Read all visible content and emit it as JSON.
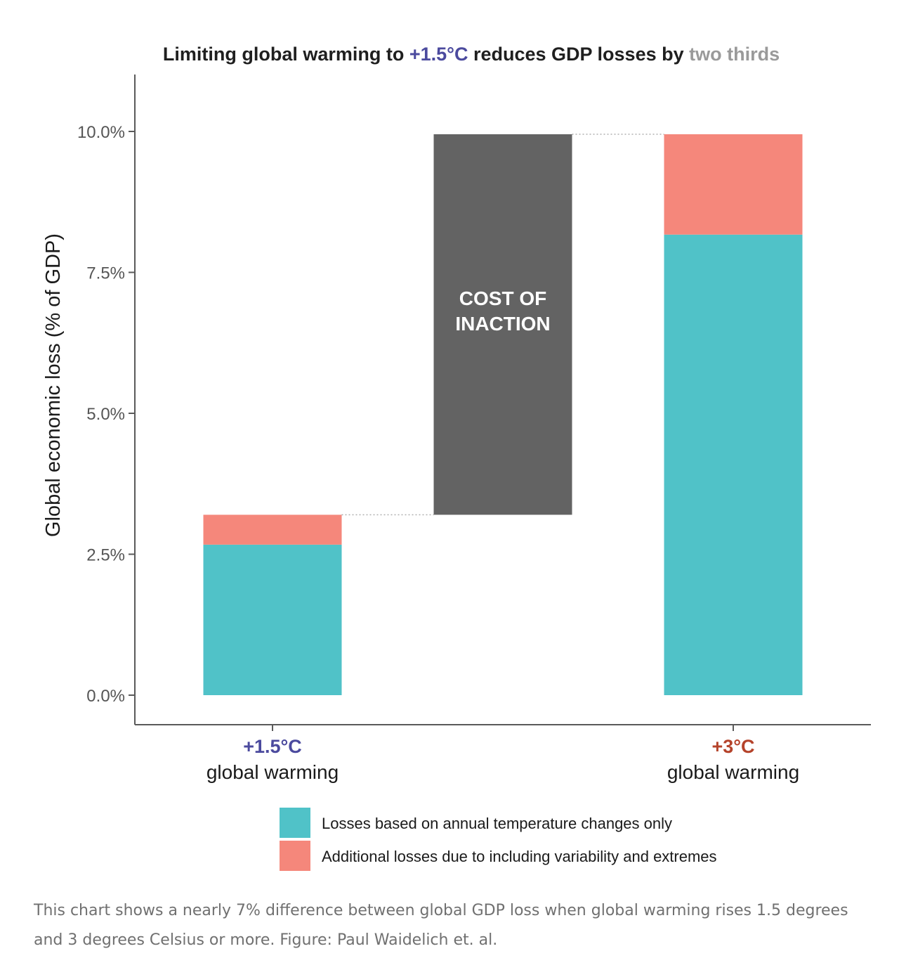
{
  "chart_data": {
    "type": "bar",
    "stacked": true,
    "title": {
      "parts": [
        {
          "text": "Limiting global warming to ",
          "role": "plain"
        },
        {
          "text": "+1.5°C",
          "role": "accent"
        },
        {
          "text": " reduces GDP losses by ",
          "role": "plain"
        },
        {
          "text": "two thirds",
          "role": "muted"
        }
      ]
    },
    "ylabel": "Global economic loss (% of GDP)",
    "ylim": [
      -0.5,
      11.0
    ],
    "yticks": [
      0,
      2.5,
      5,
      7.5,
      10
    ],
    "ytick_labels": [
      "0.0%",
      "2.5%",
      "5.0%",
      "7.5%",
      "10.0%"
    ],
    "grid": false,
    "categories": [
      {
        "title": "+1.5°C",
        "subtitle": "global warming",
        "color": "#4b4a9e"
      },
      {
        "title": "+3°C",
        "subtitle": "global warming",
        "color": "#b5432b"
      }
    ],
    "series": [
      {
        "name": "Losses based on annual temperature changes only",
        "color": "#50c2c8",
        "values": [
          2.67,
          8.17
        ]
      },
      {
        "name": "Additional losses due to including variability and extremes",
        "color": "#f5877b",
        "values": [
          0.53,
          1.78
        ]
      }
    ],
    "cost_of_inaction": {
      "label_lines": [
        "COST OF",
        "INACTION"
      ],
      "from": 3.2,
      "to": 9.95,
      "color": "#636363"
    },
    "legend_position": "bottom",
    "colors": {
      "accent": "#4b4a9e",
      "muted": "#9a9a9a",
      "axis": "#5a5a5a"
    }
  },
  "caption": "This chart shows a nearly 7% difference between global GDP loss when global warming rises 1.5 degrees and 3 degrees Celsius or more. Figure: Paul Waidelich et. al."
}
